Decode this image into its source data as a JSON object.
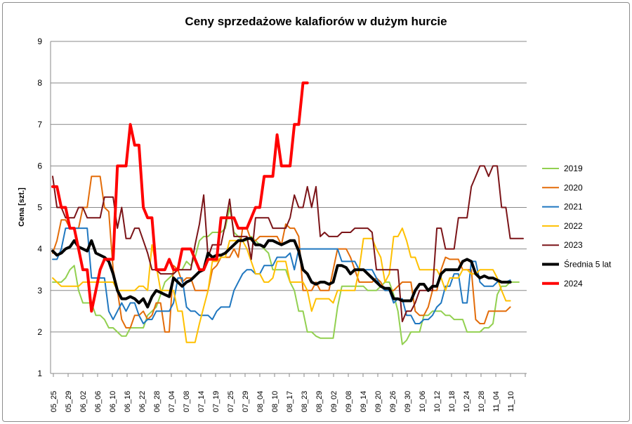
{
  "chart_data": {
    "type": "line",
    "title": "Ceny sprzedażowe kalafiorów w dużym hurcie",
    "xlabel": "",
    "ylabel": "Cena [szt.]",
    "ylim": [
      1,
      9
    ],
    "yticks": [
      1,
      2,
      3,
      4,
      5,
      6,
      7,
      8,
      9
    ],
    "grid": "horizontal",
    "legend": "right",
    "xticks": [
      "05_25",
      "05_29",
      "06_02",
      "06_06",
      "06_10",
      "06_16",
      "06_22",
      "06_28",
      "07_04",
      "07_08",
      "07_14",
      "07_19",
      "07_25",
      "07_29",
      "08_04",
      "08_10",
      "08_17",
      "08_23",
      "08_29",
      "09_02",
      "09_08",
      "09_14",
      "09_20",
      "09_26",
      "09_30",
      "10_06",
      "10_12",
      "10_18",
      "10_24",
      "10_28",
      "11_04",
      "11_10"
    ],
    "series": [
      {
        "name": "2019",
        "color": "#92d050",
        "width": 2,
        "values": [
          3.2,
          3.2,
          3.2,
          3.3,
          3.5,
          3.6,
          3,
          2.7,
          2.7,
          2.7,
          2.4,
          2.4,
          2.3,
          2.1,
          2.1,
          2,
          1.9,
          1.9,
          2.1,
          2.1,
          2.1,
          2.1,
          2.4,
          2.5,
          2.6,
          2.9,
          3.2,
          3.3,
          3.4,
          3.5,
          3.5,
          3.7,
          3.6,
          3.8,
          4.2,
          4.3,
          4.3,
          4.4,
          4.4,
          4.4,
          4.5,
          5,
          4.4,
          4.3,
          4.2,
          4.2,
          4.3,
          4.2,
          4.1,
          4,
          3.9,
          3.5,
          3.5,
          3.5,
          3.5,
          3.2,
          3,
          2.5,
          2.5,
          2,
          2,
          1.9,
          1.85,
          1.85,
          1.85,
          1.85,
          2.6,
          3.1,
          3.1,
          3.1,
          3.1,
          3.1,
          3.1,
          3,
          3,
          3,
          3.1,
          3.2,
          3.2,
          2.9,
          2.5,
          1.7,
          1.8,
          2,
          2,
          2,
          2.4,
          2.4,
          2.5,
          2.5,
          2.5,
          2.4,
          2.4,
          2.3,
          2.3,
          2.3,
          2,
          2,
          2,
          2,
          2.1,
          2.1,
          2.2,
          2.9,
          3.1,
          3.1,
          3.2,
          3.2,
          3.2
        ]
      },
      {
        "name": "2020",
        "color": "#e36c09",
        "width": 2,
        "values": [
          3.9,
          4.2,
          4.7,
          4.7,
          4.5,
          4.5,
          4.5,
          5,
          5,
          5.75,
          5.75,
          5.75,
          5,
          4.9,
          3.5,
          3,
          2.3,
          2.1,
          2.1,
          2.4,
          2.4,
          2.5,
          2.3,
          2.4,
          2.7,
          2.7,
          2,
          2,
          3.6,
          3.5,
          3.2,
          3.3,
          3.3,
          3,
          3,
          3,
          3,
          3.5,
          3.6,
          3.8,
          3.8,
          3.8,
          4,
          3.8,
          4.5,
          4.5,
          4.2,
          4.2,
          4.3,
          4.3,
          4.3,
          4.3,
          4.3,
          4.1,
          4.6,
          4.5,
          4.5,
          4.3,
          3,
          3,
          3,
          3.2,
          3,
          3,
          3,
          3.5,
          4,
          4,
          4,
          3.8,
          3.5,
          3.2,
          3.2,
          3.2,
          3.2,
          3.3,
          3.2,
          3,
          3,
          3,
          3.1,
          3.2,
          3.2,
          3.2,
          2.5,
          2.4,
          2.4,
          2.6,
          3,
          3,
          3.5,
          3.8,
          3.75,
          3.75,
          3.75,
          3.5,
          3.5,
          3.5,
          2.3,
          2.2,
          2.2,
          2.5,
          2.5,
          2.5,
          2.5,
          2.5,
          2.6
        ]
      },
      {
        "name": "2021",
        "color": "#1f77c0",
        "width": 2,
        "values": [
          3.75,
          3.75,
          4,
          4.5,
          4.5,
          4.5,
          4.5,
          4.5,
          4.5,
          3.3,
          3.3,
          3.3,
          3.3,
          2.5,
          2.3,
          2.5,
          2.7,
          2.5,
          2.7,
          2.7,
          2.4,
          2.2,
          2.3,
          2.3,
          2.5,
          2.5,
          2.5,
          2.5,
          2.7,
          3.3,
          3.3,
          2.6,
          2.5,
          2.5,
          2.4,
          2.4,
          2.4,
          2.3,
          2.5,
          2.6,
          2.6,
          2.6,
          3,
          3.2,
          3.4,
          3.5,
          3.5,
          3.4,
          3.4,
          3.6,
          3.6,
          3.6,
          3.8,
          3.8,
          3.8,
          3.9,
          3.5,
          4,
          4,
          4,
          4,
          4,
          4,
          4,
          4,
          4,
          4,
          3.7,
          3.7,
          3.7,
          3.7,
          3.5,
          3.5,
          3.5,
          3.5,
          3.3,
          3.1,
          3,
          3,
          2.7,
          2.8,
          2.8,
          2.4,
          2.4,
          2.2,
          2.2,
          2.3,
          2.3,
          2.4,
          2.6,
          2.7,
          3.1,
          3.1,
          3.4,
          3.4,
          2.7,
          2.7,
          3.7,
          3.7,
          3.2,
          3.1,
          3.1,
          3.1,
          3.2,
          3.2,
          3.2,
          3.25
        ]
      },
      {
        "name": "2022",
        "color": "#ffc000",
        "width": 2,
        "values": [
          3.3,
          3.2,
          3.1,
          3.1,
          3.1,
          3.1,
          3.1,
          3.2,
          3.2,
          3.2,
          3.2,
          3.2,
          3.2,
          3.2,
          3.2,
          3,
          3,
          3,
          3,
          3,
          3.1,
          3.1,
          3,
          4.1,
          3.6,
          3,
          3,
          3,
          3,
          2.5,
          2.5,
          1.75,
          1.75,
          1.75,
          2.2,
          2.6,
          3,
          3.7,
          3.7,
          3.8,
          3.8,
          4.2,
          4.2,
          4.2,
          4.2,
          4,
          3.7,
          3.4,
          3.4,
          3.2,
          3.2,
          3.3,
          3.7,
          3.7,
          3.7,
          3.2,
          3.2,
          3.2,
          3.2,
          3,
          2.5,
          2.8,
          2.8,
          2.8,
          2.8,
          2.7,
          3,
          3,
          3,
          3,
          3,
          3.5,
          4.25,
          4.25,
          4.25,
          4,
          3.8,
          3.2,
          3.4,
          4.3,
          4.3,
          4.5,
          4.2,
          3.8,
          3.8,
          3.5,
          3.5,
          3.5,
          3.5,
          3.5,
          3.3,
          3,
          3.3,
          3.3,
          3.3,
          3.5,
          3.5,
          3.4,
          3.4,
          3.5,
          3.5,
          3.5,
          3.5,
          3.3,
          3,
          2.75,
          2.75
        ]
      },
      {
        "name": "2023",
        "color": "#7b1418",
        "width": 2,
        "values": [
          5.75,
          5,
          5,
          4.75,
          4.75,
          4.75,
          5,
          5,
          4.75,
          4.75,
          4.75,
          4.75,
          5.25,
          5.25,
          5.25,
          4.5,
          5,
          4.25,
          4.25,
          4.5,
          4.5,
          4.2,
          3.9,
          3.5,
          3.5,
          3.4,
          3.4,
          3.4,
          3.4,
          3.5,
          3.5,
          3.5,
          3.5,
          4.1,
          4.6,
          5.3,
          3.8,
          4.1,
          4.1,
          4.1,
          4.6,
          5.2,
          4.3,
          4.3,
          4.3,
          4.3,
          3.75,
          4.75,
          4.75,
          4.75,
          4.75,
          4.5,
          4.5,
          4.5,
          4.5,
          4.75,
          5.3,
          5,
          5,
          5.5,
          5,
          5.5,
          4.3,
          4.4,
          4.3,
          4.3,
          4.3,
          4.4,
          4.4,
          4.4,
          4.5,
          4.5,
          4.5,
          4.5,
          4.4,
          3.5,
          3.5,
          3.5,
          3.5,
          3.5,
          3.5,
          2.25,
          2.5,
          2.5,
          2.7,
          3,
          3,
          3,
          3,
          4.5,
          4.5,
          4,
          4,
          4,
          4.75,
          4.75,
          4.75,
          5.5,
          5.75,
          6,
          6,
          5.75,
          6,
          6,
          5,
          5,
          4.25,
          4.25,
          4.25,
          4.25
        ]
      },
      {
        "name": "Średnia 5 lat",
        "color": "#000000",
        "width": 4,
        "values": [
          3.95,
          3.85,
          3.9,
          4,
          4.05,
          4.2,
          4.05,
          4.0,
          3.95,
          4.2,
          3.9,
          3.85,
          3.8,
          3.7,
          3.4,
          3.0,
          2.8,
          2.8,
          2.85,
          2.8,
          2.7,
          2.8,
          2.6,
          2.85,
          3.0,
          2.95,
          2.9,
          2.85,
          3.3,
          3.2,
          3.1,
          3.2,
          3.25,
          3.35,
          3.45,
          3.5,
          3.9,
          3.8,
          3.85,
          3.85,
          3.9,
          4.0,
          4.1,
          4.2,
          4.2,
          4.25,
          4.25,
          4.1,
          4.1,
          4.05,
          4.2,
          4.2,
          4.15,
          4.1,
          4.15,
          4.2,
          4.2,
          3.95,
          3.5,
          3.4,
          3.2,
          3.15,
          3.2,
          3.2,
          3.15,
          3.2,
          3.6,
          3.6,
          3.55,
          3.4,
          3.5,
          3.5,
          3.5,
          3.4,
          3.3,
          3.2,
          3.1,
          3.05,
          3.05,
          2.8,
          2.8,
          2.75,
          2.75,
          2.75,
          3.0,
          3.15,
          3.15,
          3.0,
          3.1,
          3.1,
          3.4,
          3.5,
          3.5,
          3.5,
          3.5,
          3.7,
          3.75,
          3.7,
          3.4,
          3.3,
          3.35,
          3.3,
          3.3,
          3.25,
          3.2,
          3.2,
          3.2
        ]
      },
      {
        "name": "2024",
        "color": "#ff0000",
        "width": 4,
        "values": [
          5.5,
          5.5,
          5,
          5,
          4.5,
          4.5,
          4,
          3.5,
          3.5,
          2.5,
          3,
          3.5,
          3.75,
          3.75,
          3.75,
          6,
          6,
          6,
          7,
          6.5,
          6.5,
          5,
          4.75,
          4.75,
          3.5,
          3.5,
          3.5,
          3.75,
          3.5,
          3.5,
          4,
          4,
          4,
          3.75,
          3.5,
          3.5,
          3.75,
          3.75,
          3.75,
          4.75,
          4.75,
          4.75,
          4.75,
          4.5,
          4.5,
          4.5,
          4.75,
          5,
          5,
          5.75,
          5.75,
          5.75,
          6.75,
          6,
          6,
          6,
          7,
          7,
          8,
          8
        ]
      }
    ]
  }
}
